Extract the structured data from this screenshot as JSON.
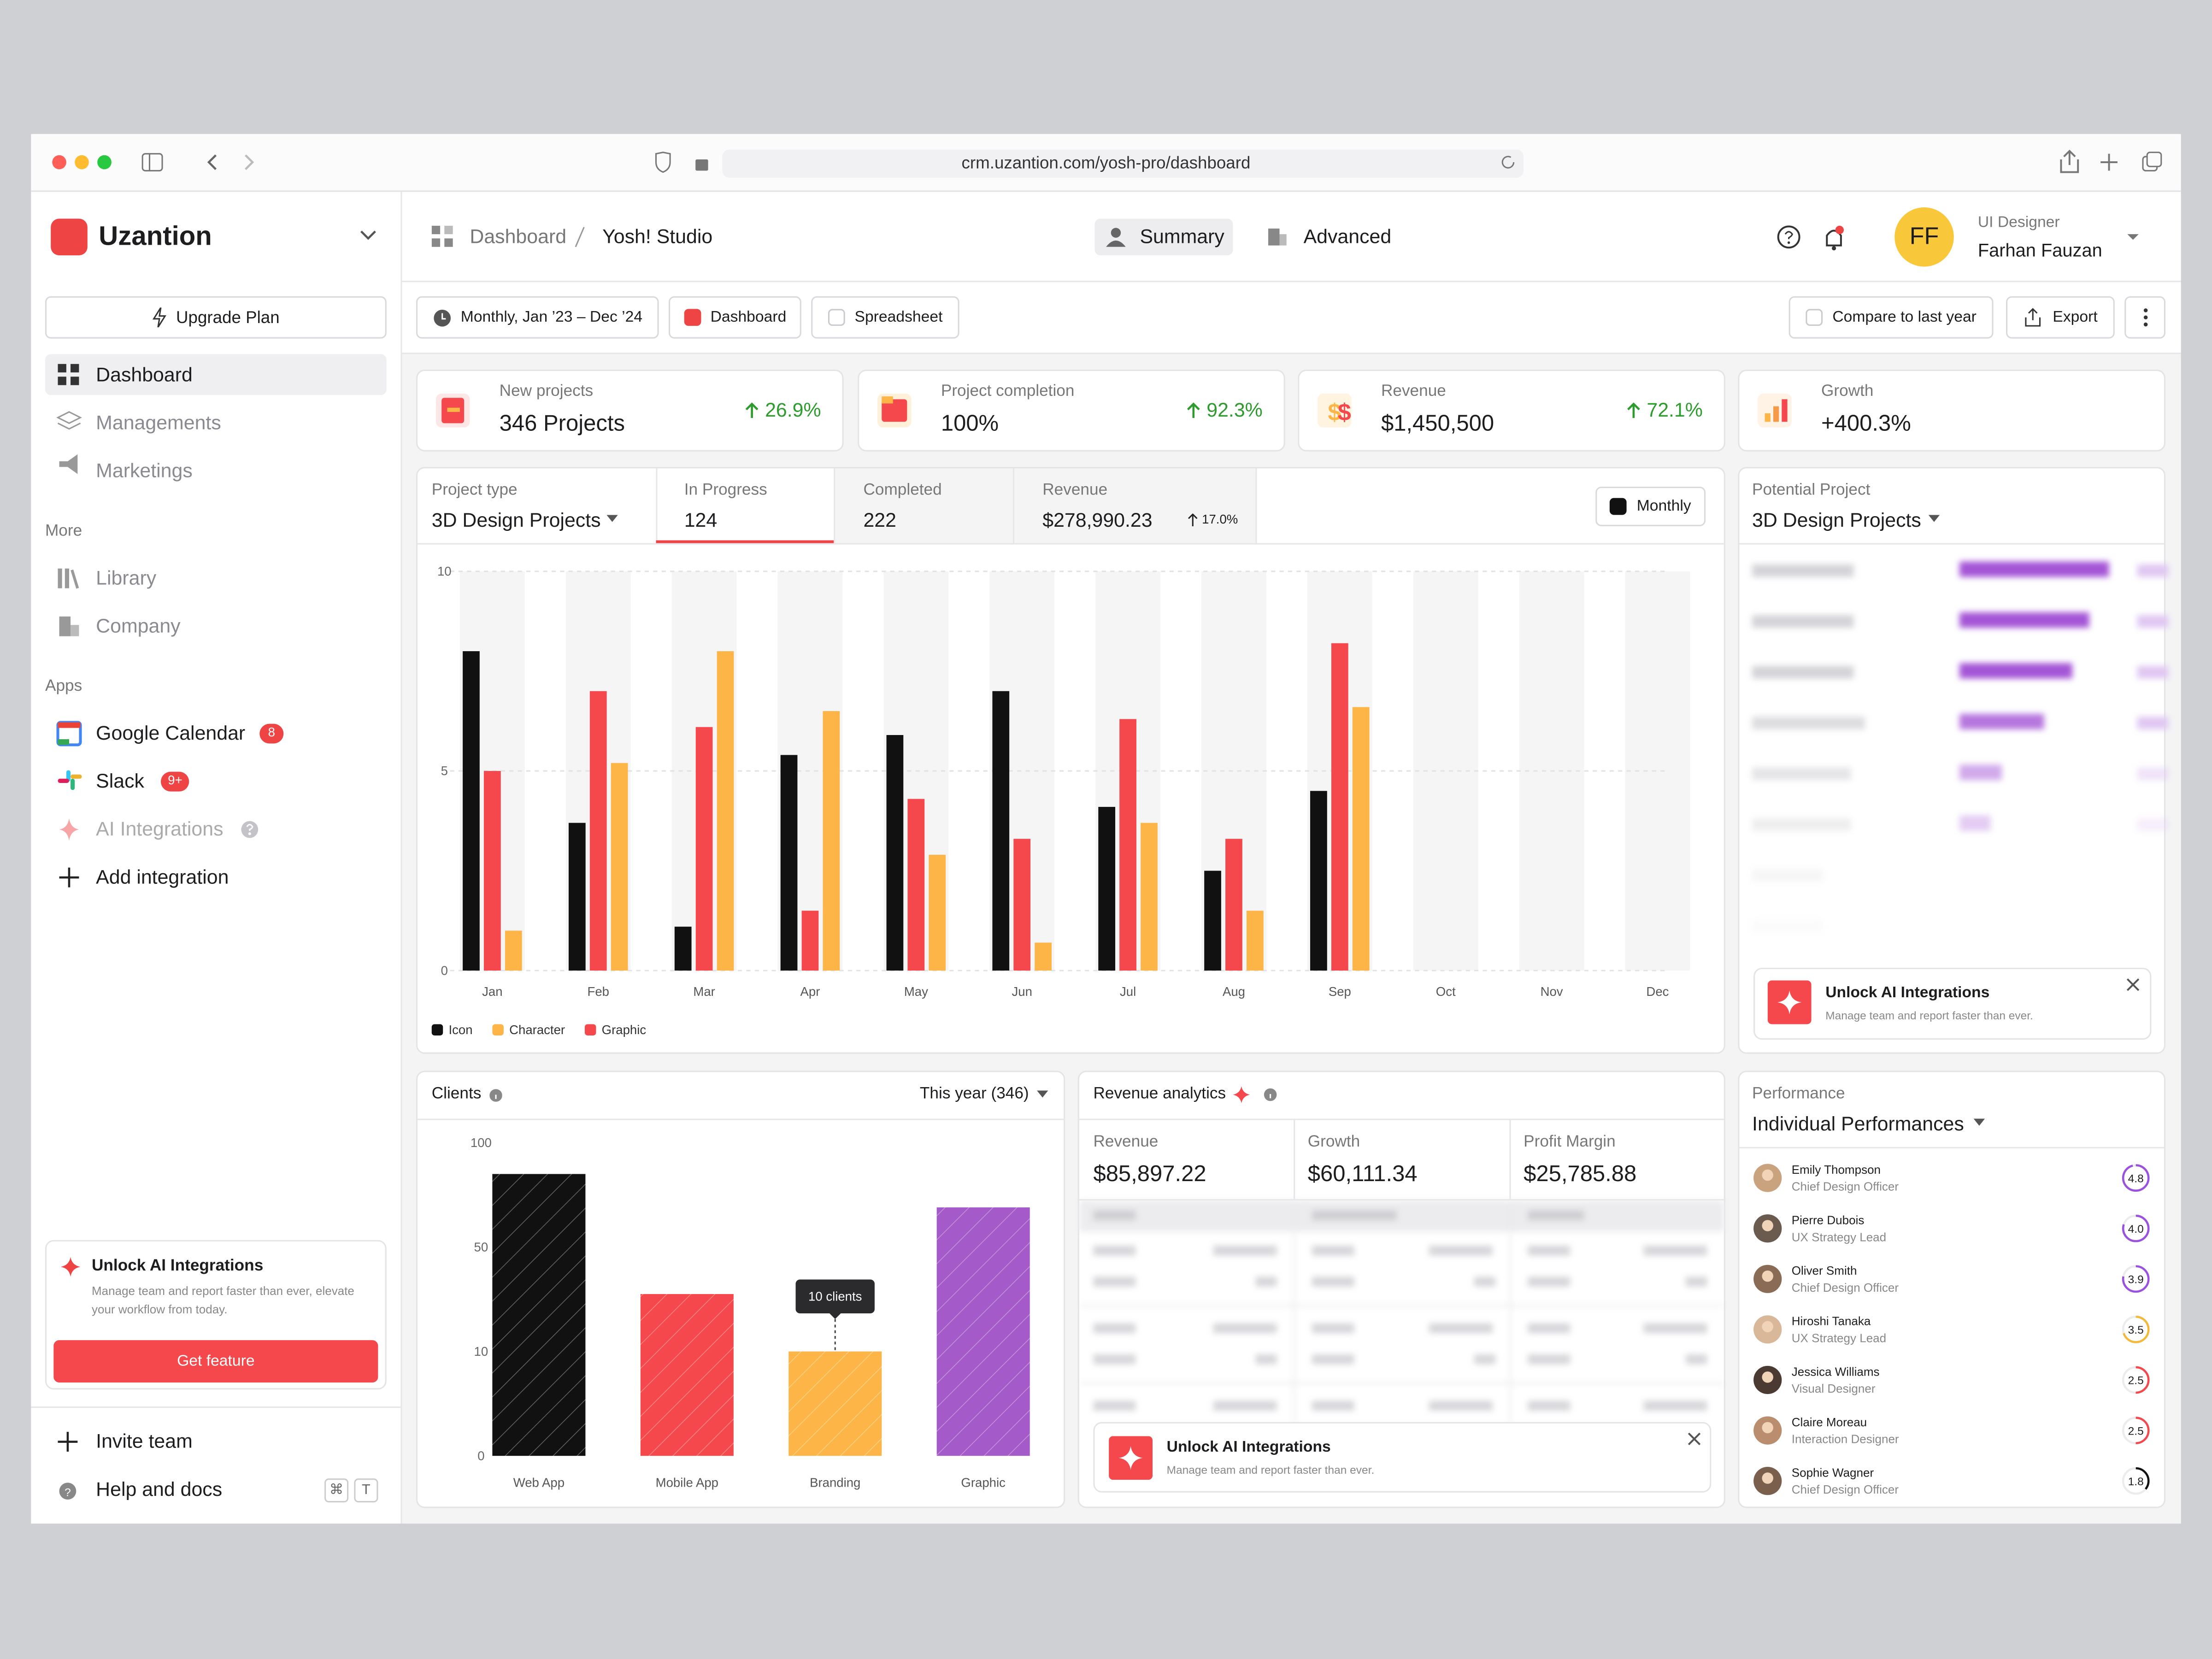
{
  "browser": {
    "url": "crm.uzantion.com/yosh-pro/dashboard"
  },
  "sidebar": {
    "brand": "Uzantion",
    "upgrade": "Upgrade Plan",
    "nav": [
      "Dashboard",
      "Managements",
      "Marketings"
    ],
    "more_heading": "More",
    "more": [
      "Library",
      "Company"
    ],
    "apps_heading": "Apps",
    "apps": [
      {
        "label": "Google Calendar",
        "badge": "8"
      },
      {
        "label": "Slack",
        "badge": "9+"
      },
      {
        "label": "AI Integrations"
      }
    ],
    "add_integration": "Add integration",
    "promo": {
      "title": "Unlock AI Integrations",
      "text": "Manage team and report faster than ever, elevate your workflow from today.",
      "button": "Get feature"
    },
    "footer": [
      "Invite team",
      "Help and docs"
    ],
    "shortcut": [
      "⌘",
      "T"
    ]
  },
  "header": {
    "breadcrumb": [
      "Dashboard",
      "Yosh! Studio"
    ],
    "tabs": [
      "Summary",
      "Advanced"
    ],
    "user": {
      "initials": "FF",
      "role": "UI Designer",
      "name": "Farhan Fauzan"
    }
  },
  "toolbar": {
    "period": "Monthly, Jan ’23 – Dec ’24",
    "views": [
      "Dashboard",
      "Spreadsheet"
    ],
    "compare": "Compare to last year",
    "export": "Export"
  },
  "kpis": [
    {
      "label": "New projects",
      "value": "346 Projects",
      "change": "26.9%"
    },
    {
      "label": "Project completion",
      "value": "100%",
      "change": "92.3%"
    },
    {
      "label": "Revenue",
      "value": "$1,450,500",
      "change": "72.1%"
    },
    {
      "label": "Growth",
      "value": "+400.3%"
    }
  ],
  "projects": {
    "type_label": "Project type",
    "type": "3D Design Projects",
    "stats": [
      {
        "label": "In Progress",
        "value": "124"
      },
      {
        "label": "Completed",
        "value": "222"
      },
      {
        "label": "Revenue",
        "value": "$278,990.23",
        "change": "17.0%"
      }
    ],
    "period": "Monthly",
    "chart": {
      "type": "bar",
      "categories": [
        "Jan",
        "Feb",
        "Mar",
        "Apr",
        "May",
        "Jun",
        "Jul",
        "Aug",
        "Sep",
        "Oct",
        "Nov",
        "Dec"
      ],
      "series": [
        {
          "name": "Icon",
          "color": "#111111",
          "values": [
            8.0,
            3.7,
            1.1,
            5.4,
            5.9,
            7.0,
            4.1,
            2.5,
            4.5,
            null,
            null,
            null
          ]
        },
        {
          "name": "Character",
          "color": "#fdb548",
          "values": [
            1.0,
            5.2,
            8.0,
            6.5,
            2.9,
            0.7,
            3.7,
            1.5,
            6.6,
            null,
            null,
            null
          ]
        },
        {
          "name": "Graphic",
          "color": "#f5484c",
          "values": [
            5.0,
            7.0,
            6.1,
            1.5,
            4.3,
            3.3,
            6.3,
            3.3,
            8.2,
            null,
            null,
            null
          ]
        }
      ],
      "ylim": [
        0,
        10
      ],
      "yticks": [
        0,
        5,
        10
      ],
      "grid": true
    }
  },
  "potential": {
    "label": "Potential Project",
    "value": "3D Design Projects",
    "promo": {
      "title": "Unlock AI Integrations",
      "text": "Manage team and report faster than ever."
    }
  },
  "clients": {
    "title": "Clients",
    "filter": "This year (346)",
    "chart": {
      "type": "bar",
      "categories": [
        "Web App",
        "Mobile App",
        "Branding",
        "Graphic"
      ],
      "values": [
        85,
        32,
        10,
        69
      ],
      "value_labels": [
        null,
        null,
        "10 clients",
        null
      ],
      "colors": [
        "#111111",
        "#f5484c",
        "#fdb548",
        "#a45ac8"
      ],
      "ylim": [
        0,
        100
      ],
      "yticks": [
        0,
        10,
        50,
        100
      ]
    }
  },
  "revenue": {
    "title": "Revenue analytics",
    "stats": [
      {
        "label": "Revenue",
        "value": "$85,897.22"
      },
      {
        "label": "Growth",
        "value": "$60,111.34"
      },
      {
        "label": "Profit Margin",
        "value": "$25,785.88"
      }
    ],
    "promo": {
      "title": "Unlock AI Integrations",
      "text": "Manage team and report faster than ever."
    }
  },
  "performance": {
    "label": "Performance",
    "value": "Individual Performances",
    "score_range": [
      0,
      5
    ],
    "people": [
      {
        "name": "Emily Thompson",
        "role": "Chief Design Officer",
        "score": 4.8,
        "score_label": "4.8",
        "color": "#9b51e0"
      },
      {
        "name": "Pierre Dubois",
        "role": "UX Strategy Lead",
        "score": 4.0,
        "score_label": "4.0",
        "color": "#9b51e0"
      },
      {
        "name": "Oliver Smith",
        "role": "Chief Design Officer",
        "score": 3.9,
        "score_label": "3.9",
        "color": "#9b51e0"
      },
      {
        "name": "Hiroshi Tanaka",
        "role": "UX Strategy Lead",
        "score": 3.5,
        "score_label": "3.5",
        "color": "#f5b93a"
      },
      {
        "name": "Jessica Williams",
        "role": "Visual Designer",
        "score": 2.5,
        "score_label": "2.5",
        "color": "#f5484c"
      },
      {
        "name": "Claire Moreau",
        "role": "Interaction Designer",
        "score": 2.5,
        "score_label": "2.5",
        "color": "#f5484c"
      },
      {
        "name": "Sophie Wagner",
        "role": "Chief Design Officer",
        "score": 1.8,
        "score_label": "1.8",
        "color": "#111111"
      }
    ]
  }
}
